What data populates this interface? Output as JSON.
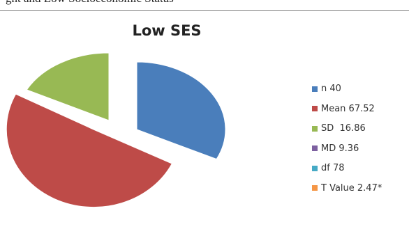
{
  "caption_fragment": "ght and Low Socioeconomic Status",
  "chart_data": {
    "type": "pie",
    "title": "Low SES",
    "exploded": true,
    "slices": [
      {
        "label": "n 40",
        "value": 40,
        "color": "#4a7ebb"
      },
      {
        "label": "Mean 67.52",
        "value": 67.52,
        "color": "#be4b48"
      },
      {
        "label": "SD  16.86",
        "value": 16.86,
        "color": "#98b954"
      },
      {
        "label": "MD 9.36",
        "value": 9.36,
        "color": "#7d60a0"
      },
      {
        "label": "df 78",
        "value": 78,
        "color": "#46aac5"
      },
      {
        "label": "T Value 2.47*",
        "value": 2.47,
        "color": "#f59646"
      }
    ],
    "drawn_slices": [
      0,
      1,
      2
    ],
    "legend_position": "right"
  }
}
